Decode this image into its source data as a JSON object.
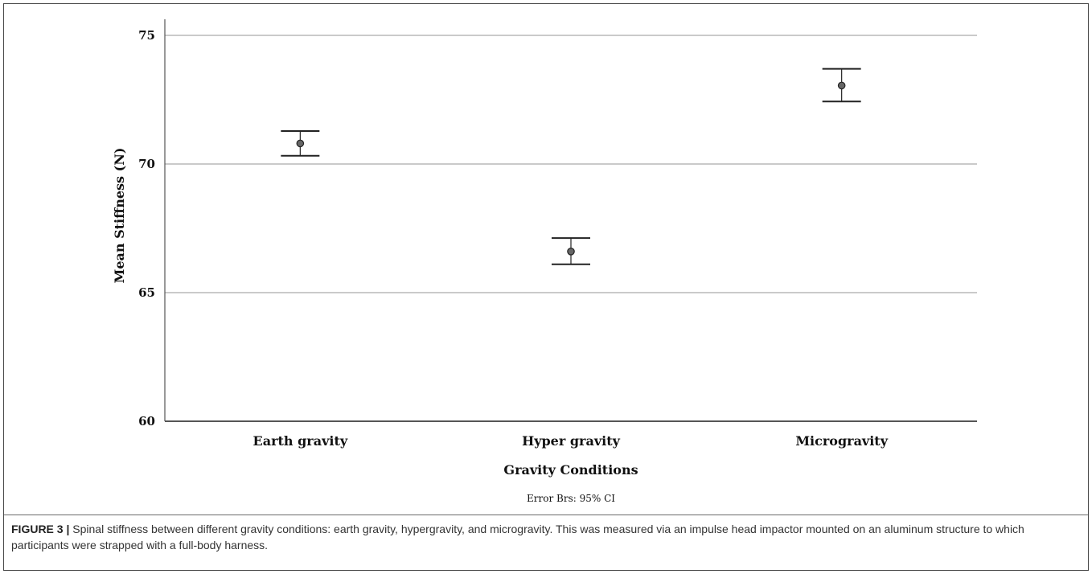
{
  "chart_data": {
    "type": "errorbar",
    "categories": [
      "Earth gravity",
      "Hyper gravity",
      "Microgravity"
    ],
    "means": [
      70.8,
      66.6,
      73.05
    ],
    "ci_lower": [
      70.32,
      66.1,
      72.43
    ],
    "ci_upper": [
      71.28,
      67.12,
      73.7
    ],
    "xlabel": "Gravity Conditions",
    "ylabel": "Mean Stiffness (N)",
    "ylim": [
      60,
      75
    ],
    "yticks": [
      60,
      65,
      70,
      75
    ],
    "grid": true,
    "note": "Error Brs: 95% CI"
  },
  "caption": {
    "label": "FIGURE 3 |",
    "text": "Spinal stiffness between different gravity conditions: earth gravity, hypergravity, and microgravity. This was measured via an impulse head impactor mounted on an aluminum structure to which participants were strapped with a full-body harness."
  }
}
